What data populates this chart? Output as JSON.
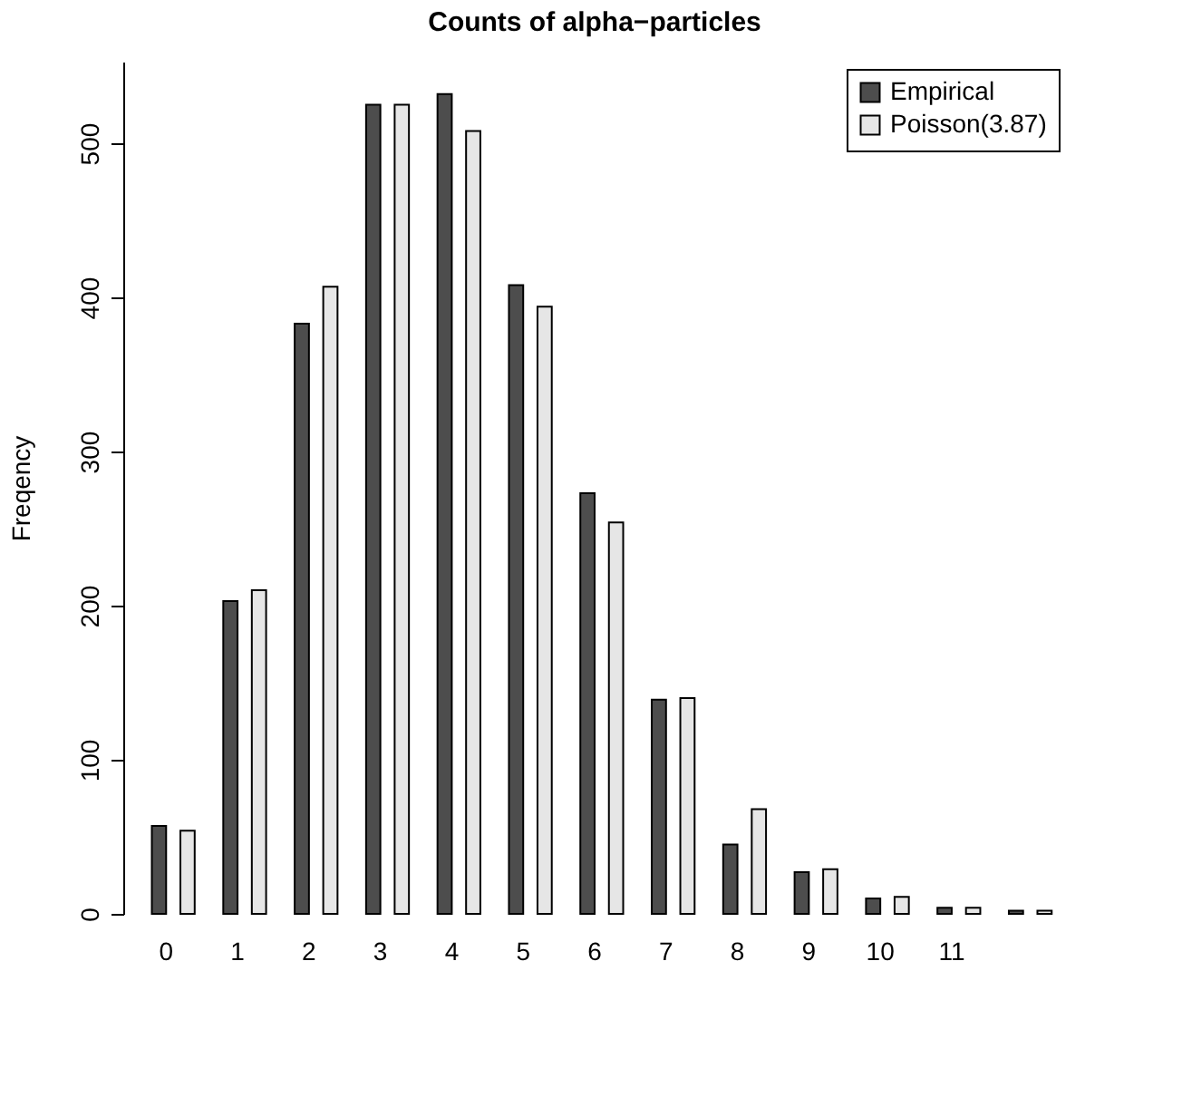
{
  "chart_data": {
    "type": "bar",
    "title": "Counts of alpha−particles",
    "ylabel": "Freqency",
    "categories": [
      "0",
      "1",
      "2",
      "3",
      "4",
      "5",
      "6",
      "7",
      "8",
      "9",
      "10",
      "11",
      null
    ],
    "series": [
      {
        "name": "Empirical",
        "color": "#4d4d4d",
        "values": [
          57,
          203,
          383,
          525,
          532,
          408,
          273,
          139,
          45,
          27,
          10,
          4,
          2
        ]
      },
      {
        "name": "Poisson(3.87)",
        "color": "#e6e6e6",
        "values": [
          54,
          210,
          407,
          525,
          508,
          394,
          254,
          140,
          68,
          29,
          11,
          4,
          2
        ]
      }
    ],
    "ylim": [
      0,
      553
    ],
    "yticks": [
      0,
      100,
      200,
      300,
      400,
      500
    ],
    "grid": false,
    "legend": "top right"
  }
}
